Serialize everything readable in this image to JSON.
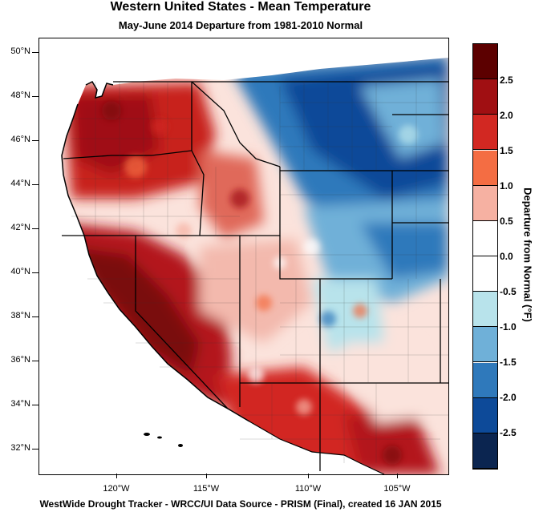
{
  "title": "Western United States - Mean Temperature",
  "subtitle": "May-June 2014  Departure from 1981-2010 Normal",
  "footer": "WestWide Drought Tracker - WRCC/UI  Data Source - PRISM (Final), created 16 JAN 2015",
  "colorbar": {
    "title": "Departure from Normal (°F)",
    "labels": [
      "2.5",
      "2.0",
      "1.5",
      "1.0",
      "0.5",
      "0.0",
      "-0.5",
      "-1.0",
      "-1.5",
      "-2.0",
      "-2.5"
    ],
    "colors": [
      "#5c0000",
      "#a00f12",
      "#d22822",
      "#f46d43",
      "#f6b1a2",
      "#ffffff",
      "#ffffff",
      "#b8e3eb",
      "#6fb0d8",
      "#2f79bb",
      "#0d4a99",
      "#0b2550"
    ]
  },
  "axes": {
    "lat_labels": [
      "50°N",
      "48°N",
      "46°N",
      "44°N",
      "42°N",
      "40°N",
      "38°N",
      "36°N",
      "34°N",
      "32°N"
    ],
    "lon_labels": [
      "120°W",
      "115°W",
      "110°W",
      "105°W"
    ]
  }
}
